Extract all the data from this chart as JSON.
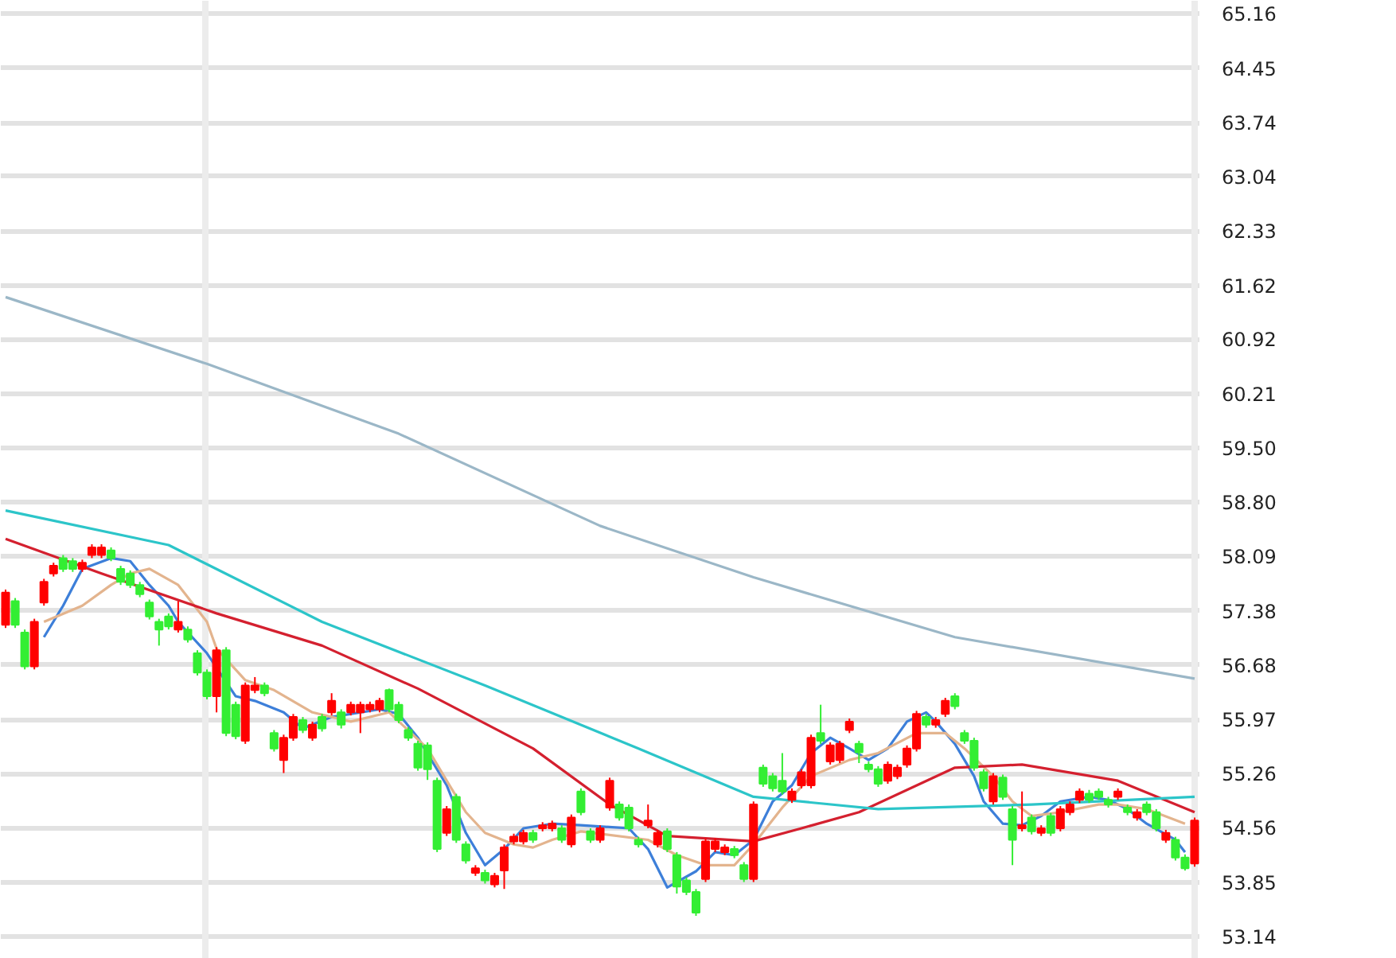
{
  "chart_data": {
    "type": "candlestick",
    "categories": [
      null,
      null,
      null,
      null,
      null,
      null,
      null,
      null,
      null,
      null,
      null,
      null,
      null,
      null,
      null,
      null,
      null,
      null,
      null,
      null,
      null,
      null,
      null,
      null,
      null,
      null,
      null,
      null,
      null,
      null,
      null,
      null,
      null,
      null,
      null,
      null,
      null,
      null,
      null,
      null,
      null,
      null,
      null,
      null,
      null,
      null,
      null,
      null,
      null,
      null,
      null,
      null,
      null,
      null,
      null,
      null,
      null,
      null,
      null,
      null,
      null,
      null,
      null,
      null,
      null,
      null,
      null,
      null,
      null,
      null,
      null,
      null,
      null,
      null,
      null,
      null,
      null,
      null,
      null,
      null,
      null,
      null,
      null,
      null,
      null,
      null,
      null,
      null,
      null,
      null,
      null,
      null,
      null,
      null,
      null,
      null,
      null,
      null,
      null,
      null,
      null,
      null,
      null,
      null,
      null,
      null,
      null,
      null,
      null,
      null,
      null,
      null,
      null,
      null,
      null,
      null,
      null,
      null,
      null,
      null,
      null,
      null,
      null,
      null,
      null
    ],
    "ohlc": [
      [
        57.2,
        57.66,
        57.16,
        57.62
      ],
      [
        57.51,
        57.55,
        57.16,
        57.2
      ],
      [
        57.1,
        57.14,
        56.62,
        56.66
      ],
      [
        56.66,
        57.28,
        56.62,
        57.24
      ],
      [
        57.49,
        57.8,
        57.45,
        57.76
      ],
      [
        57.87,
        58.01,
        57.83,
        57.97
      ],
      [
        58.07,
        58.11,
        57.89,
        57.93
      ],
      [
        58.03,
        58.07,
        57.89,
        57.93
      ],
      [
        57.93,
        58.05,
        57.89,
        58.01
      ],
      [
        58.11,
        58.25,
        58.07,
        58.21
      ],
      [
        58.11,
        58.25,
        58.07,
        58.21
      ],
      [
        58.17,
        58.21,
        58.03,
        58.07
      ],
      [
        57.93,
        57.97,
        57.72,
        57.76
      ],
      [
        57.87,
        57.91,
        57.68,
        57.72
      ],
      [
        57.72,
        57.76,
        57.56,
        57.6
      ],
      [
        57.49,
        57.53,
        57.27,
        57.31
      ],
      [
        57.24,
        57.28,
        56.93,
        57.14
      ],
      [
        57.31,
        57.35,
        57.14,
        57.18
      ],
      [
        57.14,
        57.51,
        57.1,
        57.24
      ],
      [
        57.14,
        57.18,
        56.97,
        57.01
      ],
      [
        56.83,
        56.87,
        56.54,
        56.58
      ],
      [
        56.58,
        56.62,
        56.23,
        56.27
      ],
      [
        56.27,
        56.91,
        56.06,
        56.87
      ],
      [
        56.87,
        56.91,
        55.75,
        55.79
      ],
      [
        56.16,
        56.2,
        55.71,
        55.75
      ],
      [
        55.69,
        56.45,
        55.65,
        56.41
      ],
      [
        56.35,
        56.52,
        56.31,
        56.41
      ],
      [
        56.41,
        56.45,
        56.27,
        56.31
      ],
      [
        55.79,
        55.83,
        55.55,
        55.59
      ],
      [
        55.44,
        55.77,
        55.27,
        55.73
      ],
      [
        55.73,
        56.04,
        55.69,
        56.0
      ],
      [
        55.96,
        56.0,
        55.79,
        55.83
      ],
      [
        55.73,
        55.94,
        55.69,
        55.9
      ],
      [
        56.0,
        56.04,
        55.81,
        55.85
      ],
      [
        56.06,
        56.31,
        56.02,
        56.21
      ],
      [
        56.06,
        56.1,
        55.85,
        55.9
      ],
      [
        56.06,
        56.2,
        56.02,
        56.16
      ],
      [
        56.06,
        56.2,
        55.79,
        56.16
      ],
      [
        56.1,
        56.2,
        56.06,
        56.16
      ],
      [
        56.1,
        56.25,
        56.06,
        56.21
      ],
      [
        56.35,
        56.37,
        56.06,
        56.1
      ],
      [
        56.16,
        56.2,
        55.92,
        55.96
      ],
      [
        55.83,
        55.87,
        55.69,
        55.73
      ],
      [
        55.65,
        55.69,
        55.3,
        55.34
      ],
      [
        55.63,
        55.67,
        55.18,
        55.32
      ],
      [
        55.17,
        55.21,
        54.24,
        54.28
      ],
      [
        54.49,
        54.84,
        54.45,
        54.8
      ],
      [
        54.96,
        55.0,
        54.36,
        54.4
      ],
      [
        54.34,
        54.38,
        54.09,
        54.13
      ],
      [
        53.97,
        54.07,
        53.93,
        54.03
      ],
      [
        53.97,
        54.01,
        53.83,
        53.87
      ],
      [
        53.82,
        53.97,
        53.78,
        53.93
      ],
      [
        54.0,
        54.34,
        53.76,
        54.3
      ],
      [
        54.38,
        54.48,
        54.34,
        54.44
      ],
      [
        54.38,
        54.53,
        54.34,
        54.49
      ],
      [
        54.49,
        54.53,
        54.36,
        54.4
      ],
      [
        54.55,
        54.63,
        54.51,
        54.59
      ],
      [
        54.55,
        54.65,
        54.51,
        54.61
      ],
      [
        54.55,
        54.59,
        54.36,
        54.4
      ],
      [
        54.34,
        54.73,
        54.3,
        54.69
      ],
      [
        55.03,
        55.07,
        54.72,
        54.76
      ],
      [
        54.51,
        54.55,
        54.36,
        54.4
      ],
      [
        54.4,
        54.59,
        54.36,
        54.55
      ],
      [
        54.82,
        55.21,
        54.78,
        55.17
      ],
      [
        54.86,
        54.9,
        54.65,
        54.69
      ],
      [
        54.82,
        54.86,
        54.51,
        54.55
      ],
      [
        54.4,
        54.44,
        54.3,
        54.34
      ],
      [
        54.59,
        54.86,
        54.55,
        54.65
      ],
      [
        54.34,
        54.53,
        54.3,
        54.49
      ],
      [
        54.51,
        54.55,
        54.24,
        54.28
      ],
      [
        54.2,
        54.24,
        53.7,
        53.79
      ],
      [
        53.87,
        53.91,
        53.68,
        53.72
      ],
      [
        53.72,
        53.76,
        53.41,
        53.45
      ],
      [
        53.89,
        54.42,
        53.85,
        54.38
      ],
      [
        54.28,
        54.42,
        54.24,
        54.38
      ],
      [
        54.24,
        54.34,
        54.2,
        54.3
      ],
      [
        54.28,
        54.32,
        54.16,
        54.2
      ],
      [
        54.07,
        54.11,
        53.85,
        53.89
      ],
      [
        53.89,
        54.9,
        53.85,
        54.86
      ],
      [
        55.34,
        55.38,
        55.09,
        55.13
      ],
      [
        55.23,
        55.27,
        55.03,
        55.07
      ],
      [
        55.17,
        55.53,
        54.99,
        55.03
      ],
      [
        54.92,
        55.07,
        54.88,
        55.03
      ],
      [
        55.11,
        55.32,
        55.07,
        55.28
      ],
      [
        55.11,
        55.77,
        55.07,
        55.73
      ],
      [
        55.79,
        56.16,
        55.65,
        55.69
      ],
      [
        55.42,
        55.67,
        55.38,
        55.63
      ],
      [
        55.44,
        55.69,
        55.4,
        55.65
      ],
      [
        55.83,
        55.98,
        55.79,
        55.94
      ],
      [
        55.65,
        55.69,
        55.4,
        55.54
      ],
      [
        55.38,
        55.42,
        55.28,
        55.32
      ],
      [
        55.32,
        55.36,
        55.09,
        55.13
      ],
      [
        55.17,
        55.42,
        55.13,
        55.38
      ],
      [
        55.23,
        55.38,
        55.19,
        55.34
      ],
      [
        55.38,
        55.63,
        55.34,
        55.59
      ],
      [
        55.59,
        56.08,
        55.55,
        56.04
      ],
      [
        56.0,
        56.04,
        55.86,
        55.9
      ],
      [
        55.9,
        56.0,
        55.86,
        55.96
      ],
      [
        56.04,
        56.25,
        56.0,
        56.21
      ],
      [
        56.27,
        56.31,
        56.1,
        56.14
      ],
      [
        55.79,
        55.83,
        55.65,
        55.69
      ],
      [
        55.69,
        55.73,
        55.3,
        55.34
      ],
      [
        55.28,
        55.32,
        55.03,
        55.07
      ],
      [
        54.9,
        55.27,
        54.86,
        55.23
      ],
      [
        55.21,
        55.25,
        54.92,
        54.96
      ],
      [
        54.8,
        54.84,
        54.07,
        54.4
      ],
      [
        54.55,
        55.03,
        54.51,
        54.59
      ],
      [
        54.69,
        54.73,
        54.47,
        54.51
      ],
      [
        54.49,
        54.59,
        54.45,
        54.55
      ],
      [
        54.71,
        54.75,
        54.45,
        54.49
      ],
      [
        54.55,
        54.84,
        54.51,
        54.8
      ],
      [
        54.76,
        54.9,
        54.72,
        54.86
      ],
      [
        54.92,
        55.07,
        54.88,
        55.03
      ],
      [
        55.0,
        55.05,
        54.88,
        54.92
      ],
      [
        55.03,
        55.07,
        54.92,
        54.96
      ],
      [
        54.92,
        54.96,
        54.82,
        54.86
      ],
      [
        54.96,
        55.07,
        54.92,
        55.03
      ],
      [
        54.82,
        54.86,
        54.72,
        54.76
      ],
      [
        54.69,
        54.8,
        54.65,
        54.76
      ],
      [
        54.86,
        54.9,
        54.72,
        54.76
      ],
      [
        54.76,
        54.8,
        54.51,
        54.55
      ],
      [
        54.4,
        54.53,
        54.36,
        54.49
      ],
      [
        54.4,
        54.44,
        54.13,
        54.17
      ],
      [
        54.17,
        54.21,
        54.0,
        54.03
      ],
      [
        54.09,
        54.69,
        54.05,
        54.65
      ]
    ],
    "colors": [
      "#ff0000",
      "#33ee33",
      "#33ee33",
      "#ff0000",
      "#ff0000",
      "#ff0000",
      "#33ee33",
      "#33ee33",
      "#ff0000",
      "#ff0000",
      "#ff0000",
      "#33ee33",
      "#33ee33",
      "#33ee33",
      "#33ee33",
      "#33ee33",
      "#33ee33",
      "#33ee33",
      "#ff0000",
      "#33ee33",
      "#33ee33",
      "#33ee33",
      "#ff0000",
      "#33ee33",
      "#33ee33",
      "#ff0000",
      "#ff0000",
      "#33ee33",
      "#33ee33",
      "#ff0000",
      "#ff0000",
      "#33ee33",
      "#ff0000",
      "#33ee33",
      "#ff0000",
      "#33ee33",
      "#ff0000",
      "#ff0000",
      "#ff0000",
      "#ff0000",
      "#33ee33",
      "#33ee33",
      "#33ee33",
      "#33ee33",
      "#33ee33",
      "#33ee33",
      "#ff0000",
      "#33ee33",
      "#33ee33",
      "#ff0000",
      "#33ee33",
      "#ff0000",
      "#ff0000",
      "#ff0000",
      "#ff0000",
      "#33ee33",
      "#ff0000",
      "#ff0000",
      "#33ee33",
      "#ff0000",
      "#33ee33",
      "#33ee33",
      "#ff0000",
      "#ff0000",
      "#33ee33",
      "#33ee33",
      "#33ee33",
      "#ff0000",
      "#ff0000",
      "#33ee33",
      "#33ee33",
      "#33ee33",
      "#33ee33",
      "#ff0000",
      "#ff0000",
      "#ff0000",
      "#33ee33",
      "#33ee33",
      "#ff0000",
      "#33ee33",
      "#33ee33",
      "#33ee33",
      "#ff0000",
      "#ff0000",
      "#ff0000",
      "#33ee33",
      "#ff0000",
      "#ff0000",
      "#ff0000",
      "#33ee33",
      "#33ee33",
      "#33ee33",
      "#ff0000",
      "#ff0000",
      "#ff0000",
      "#ff0000",
      "#33ee33",
      "#ff0000",
      "#ff0000",
      "#33ee33",
      "#33ee33",
      "#33ee33",
      "#33ee33",
      "#ff0000",
      "#33ee33",
      "#33ee33",
      "#ff0000",
      "#33ee33",
      "#ff0000",
      "#33ee33",
      "#ff0000",
      "#ff0000",
      "#ff0000",
      "#33ee33",
      "#33ee33",
      "#33ee33",
      "#ff0000",
      "#33ee33",
      "#ff0000",
      "#33ee33",
      "#33ee33",
      "#ff0000",
      "#33ee33",
      "#33ee33",
      "#ff0000"
    ],
    "series": [
      {
        "type": "line",
        "color": "#3d7fd9",
        "values": [
          null,
          null,
          null,
          null,
          57.04,
          null,
          57.45,
          null,
          57.93,
          null,
          null,
          58.07,
          null,
          58.03,
          null,
          57.72,
          null,
          57.45,
          57.24,
          null,
          null,
          56.83,
          null,
          null,
          56.27,
          null,
          56.21,
          null,
          null,
          56.06,
          null,
          55.85,
          null,
          null,
          56.0,
          null,
          null,
          null,
          null,
          56.1,
          null,
          56.04,
          null,
          55.73,
          null,
          null,
          55.11,
          null,
          54.49,
          null,
          54.07,
          null,
          54.28,
          null,
          54.55,
          null,
          null,
          54.61,
          null,
          null,
          54.59,
          null,
          null,
          null,
          null,
          54.55,
          null,
          54.28,
          null,
          53.78,
          null,
          null,
          53.99,
          null,
          54.24,
          null,
          54.2,
          null,
          54.4,
          null,
          54.9,
          null,
          55.11,
          null,
          55.53,
          null,
          55.73,
          null,
          55.59,
          null,
          55.44,
          null,
          55.59,
          null,
          55.94,
          null,
          56.06,
          55.94,
          null,
          55.65,
          null,
          55.23,
          54.9,
          null,
          54.61,
          null,
          54.59,
          null,
          54.71,
          null,
          54.9,
          null,
          null,
          54.96,
          null,
          54.92,
          null,
          54.8,
          null,
          54.61,
          null,
          null,
          54.4,
          54.24,
          null
        ]
      },
      {
        "type": "line",
        "color": "#e3b48e",
        "values": [
          null,
          null,
          null,
          null,
          57.24,
          null,
          null,
          null,
          57.45,
          null,
          null,
          57.72,
          null,
          57.87,
          null,
          57.93,
          null,
          null,
          57.72,
          null,
          null,
          57.24,
          56.89,
          null,
          null,
          56.48,
          null,
          null,
          56.35,
          null,
          null,
          null,
          56.06,
          null,
          null,
          null,
          55.94,
          null,
          null,
          null,
          56.06,
          null,
          null,
          null,
          55.59,
          null,
          55.17,
          null,
          54.76,
          null,
          54.49,
          null,
          null,
          54.34,
          null,
          54.3,
          null,
          54.4,
          null,
          null,
          54.51,
          null,
          null,
          null,
          null,
          null,
          null,
          54.4,
          null,
          null,
          54.2,
          null,
          null,
          54.07,
          null,
          null,
          54.07,
          null,
          54.34,
          null,
          null,
          54.82,
          null,
          null,
          55.23,
          null,
          null,
          null,
          55.44,
          null,
          null,
          55.53,
          null,
          null,
          null,
          55.79,
          null,
          null,
          55.79,
          null,
          55.59,
          null,
          null,
          55.23,
          null,
          54.9,
          null,
          54.71,
          null,
          null,
          54.76,
          null,
          null,
          null,
          54.86,
          null,
          54.86,
          null,
          null,
          54.8,
          null,
          null,
          null,
          54.61,
          null
        ]
      },
      {
        "type": "line",
        "color": "#d4202f",
        "values": [
          58.32,
          null,
          null,
          null,
          null,
          null,
          null,
          null,
          null,
          null,
          57.87,
          null,
          null,
          null,
          null,
          null,
          null,
          null,
          null,
          null,
          null,
          null,
          57.35,
          null,
          null,
          null,
          null,
          null,
          null,
          null,
          null,
          null,
          null,
          56.93,
          null,
          null,
          null,
          null,
          null,
          null,
          null,
          null,
          null,
          56.37,
          null,
          null,
          null,
          null,
          null,
          null,
          null,
          null,
          null,
          null,
          null,
          55.59,
          null,
          null,
          null,
          null,
          null,
          null,
          null,
          54.86,
          null,
          null,
          null,
          null,
          null,
          54.45,
          null,
          null,
          null,
          null,
          null,
          null,
          null,
          null,
          54.38,
          null,
          null,
          null,
          null,
          54.55,
          null,
          null,
          null,
          null,
          null,
          54.76,
          null,
          null,
          null,
          null,
          null,
          null,
          null,
          null,
          null,
          55.34,
          null,
          null,
          null,
          null,
          null,
          null,
          55.38,
          null,
          null,
          null,
          null,
          null,
          null,
          null,
          null,
          null,
          55.17,
          null,
          null,
          null,
          null,
          null,
          null,
          null,
          54.76
        ]
      },
      {
        "type": "line",
        "color": "#2cc5c9",
        "values": [
          58.69,
          null,
          null,
          null,
          null,
          null,
          null,
          null,
          null,
          null,
          null,
          null,
          null,
          null,
          null,
          null,
          null,
          58.24,
          null,
          null,
          null,
          null,
          null,
          null,
          null,
          null,
          null,
          null,
          null,
          null,
          null,
          null,
          null,
          57.24,
          null,
          null,
          null,
          null,
          null,
          null,
          null,
          null,
          null,
          null,
          null,
          null,
          null,
          null,
          null,
          null,
          56.41,
          null,
          null,
          null,
          null,
          null,
          null,
          null,
          null,
          null,
          null,
          null,
          null,
          null,
          null,
          null,
          55.59,
          null,
          null,
          null,
          null,
          null,
          null,
          null,
          null,
          null,
          null,
          null,
          54.96,
          null,
          null,
          null,
          null,
          null,
          null,
          null,
          null,
          null,
          null,
          null,
          null,
          54.8,
          null,
          null,
          null,
          null,
          null,
          null,
          null,
          null,
          null,
          null,
          null,
          null,
          null,
          null,
          null,
          54.86,
          null,
          null,
          null,
          null,
          null,
          null,
          null,
          null,
          null,
          null,
          null,
          null,
          null,
          null,
          null,
          null,
          54.96
        ]
      },
      {
        "type": "line",
        "color": "#9bb7c7",
        "values": [
          61.47,
          null,
          null,
          null,
          null,
          null,
          null,
          null,
          null,
          null,
          null,
          null,
          null,
          null,
          null,
          null,
          null,
          null,
          null,
          null,
          null,
          60.6,
          null,
          null,
          null,
          null,
          null,
          null,
          null,
          null,
          null,
          null,
          null,
          null,
          null,
          null,
          null,
          null,
          null,
          null,
          null,
          59.69,
          null,
          null,
          null,
          null,
          null,
          null,
          null,
          null,
          null,
          null,
          null,
          null,
          null,
          null,
          null,
          null,
          null,
          null,
          null,
          null,
          58.49,
          null,
          null,
          null,
          null,
          null,
          null,
          null,
          null,
          null,
          null,
          null,
          null,
          null,
          null,
          null,
          57.82,
          null,
          null,
          null,
          null,
          null,
          null,
          null,
          null,
          null,
          null,
          null,
          null,
          null,
          null,
          null,
          null,
          null,
          null,
          null,
          null,
          57.04,
          null,
          null,
          null,
          null,
          null,
          null,
          null,
          null,
          null,
          null,
          null,
          null,
          null,
          null,
          null,
          null,
          null,
          null,
          null,
          null,
          null,
          null,
          null,
          null,
          56.5
        ]
      }
    ],
    "ylim": [
      52.85,
      65.33
    ],
    "yticks": [
      65.16,
      64.45,
      63.74,
      63.04,
      62.33,
      61.62,
      60.92,
      60.21,
      {
        "value": 59.5,
        "label": "59.50"
      },
      {
        "value": 58.8,
        "label": "58.80"
      },
      58.09,
      57.38,
      56.68,
      55.97,
      55.26,
      54.56,
      53.85,
      53.14
    ],
    "grid": "y"
  }
}
